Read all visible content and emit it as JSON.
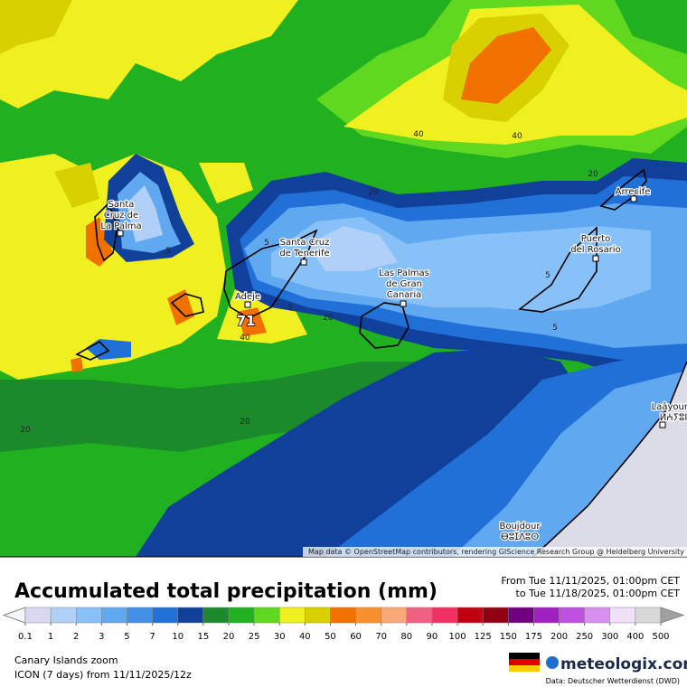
{
  "map": {
    "places": [
      {
        "lines": [
          "Santa",
          "Cruz de",
          "La Palma"
        ]
      },
      {
        "lines": [
          "Santa Cruz",
          "de Tenerife"
        ]
      },
      {
        "lines": [
          "Adeje"
        ]
      },
      {
        "lines": [
          "Las Palmas",
          "de Gran",
          "Canaria"
        ]
      },
      {
        "lines": [
          "Puerto",
          "del Rosario"
        ]
      },
      {
        "lines": [
          "Arrecife"
        ]
      },
      {
        "lines": [
          "Laâyoune",
          "ⵍⵄⵢⵓⵏ"
        ]
      },
      {
        "lines": [
          "Boujdour",
          "ⴱⵓⵊⴷⵓⵔ"
        ]
      }
    ],
    "contour_labels": [
      40,
      40,
      20,
      20,
      5,
      5,
      5,
      20,
      40,
      5,
      5,
      20,
      20
    ],
    "max_label": 71,
    "attribution": "Map data © OpenStreetMap contributors, rendering GIScience Research Group @ Heidelberg University"
  },
  "title": "Accumulated total precipitation (mm)",
  "period": {
    "from": "From Tue 11/11/2025, 01:00pm CET",
    "to": "to Tue 11/18/2025, 01:00pm CET"
  },
  "colorbar": {
    "bounds": [
      0.1,
      1,
      2,
      3,
      5,
      7,
      10,
      15,
      20,
      25,
      30,
      40,
      50,
      60,
      70,
      80,
      90,
      100,
      125,
      150,
      175,
      200,
      250,
      300,
      400,
      500
    ],
    "colors": [
      "#f4f4fb",
      "#d8d8f0",
      "#b0d0f8",
      "#88c0f8",
      "#60a8f0",
      "#4090e8",
      "#2070d8",
      "#10409a",
      "#1a8a2a",
      "#20b020",
      "#60d820",
      "#f0f020",
      "#d8d000",
      "#f07000",
      "#f89030",
      "#f8a878",
      "#f06080",
      "#f03060",
      "#c00010",
      "#900010",
      "#700080",
      "#a020c0",
      "#c050e0",
      "#d890f0",
      "#f0e0f8",
      "#d8d8d8",
      "#a0a0a0"
    ]
  },
  "footer": {
    "region": "Canary Islands zoom",
    "model": "ICON (7 days)  from  11/11/2025/12z",
    "brand": "meteologix.com",
    "source": "Data: Deutscher Wetterdienst (DWD)"
  }
}
